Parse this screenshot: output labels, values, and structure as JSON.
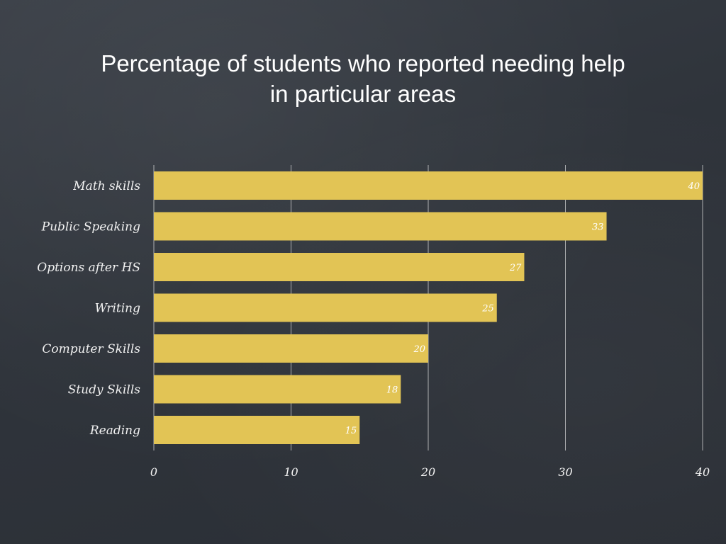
{
  "title_lines": [
    "Percentage of students who reported needing help",
    "in particular areas"
  ],
  "colors": {
    "bar": "#e2c455",
    "grid": "#d8d8d8",
    "text": "#f2f2f2"
  },
  "chart_data": {
    "type": "bar",
    "orientation": "horizontal",
    "title": "Percentage of students who reported needing help in particular areas",
    "categories": [
      "Math skills",
      "Public Speaking",
      "Options after HS",
      "Writing",
      "Computer Skills",
      "Study Skills",
      "Reading"
    ],
    "values": [
      40,
      33,
      27,
      25,
      20,
      18,
      15
    ],
    "xlim": [
      0,
      40
    ],
    "xticks": [
      0,
      10,
      20,
      30,
      40
    ],
    "grid": true,
    "data_labels": true
  }
}
